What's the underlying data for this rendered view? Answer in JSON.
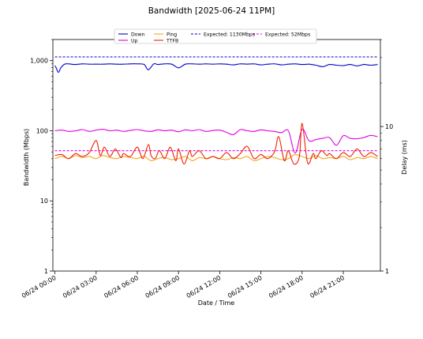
{
  "chart_data": {
    "type": "line",
    "title": "Bandwidth [2025-06-24 11PM]",
    "xlabel": "Date / Time",
    "ylabel": "Bandwidth (Mbps)",
    "y2label": "Delay (ms)",
    "x_ticks": [
      {
        "label": "06/24 00:00",
        "hour": 0
      },
      {
        "label": "06/24 03:00",
        "hour": 3
      },
      {
        "label": "06/24 06:00",
        "hour": 6
      },
      {
        "label": "06/24 09:00",
        "hour": 9
      },
      {
        "label": "06/24 12:00",
        "hour": 12
      },
      {
        "label": "06/24 15:00",
        "hour": 15
      },
      {
        "label": "06/24 18:00",
        "hour": 18
      },
      {
        "label": "06/24 21:00",
        "hour": 21
      }
    ],
    "xlim_hours": [
      -0.15,
      23.7
    ],
    "ylim": [
      1,
      2000
    ],
    "yscale": "log",
    "y_ticks": [
      {
        "label": "1",
        "v": 1
      },
      {
        "label": "10",
        "v": 10
      },
      {
        "label": "100",
        "v": 100
      },
      {
        "label": "1,000",
        "v": 1000
      }
    ],
    "y2lim": [
      1,
      40
    ],
    "y2scale": "log",
    "y2_ticks": [
      {
        "label": "1",
        "v": 1
      },
      {
        "label": "10",
        "v": 10
      }
    ],
    "legend_position": "top-center",
    "series": [
      {
        "name": "Down",
        "axis": "left",
        "color": "#0000cc",
        "style": "solid",
        "x": [
          0,
          0.1,
          0.25,
          0.45,
          0.7,
          1,
          1.5,
          2,
          2.5,
          3,
          3.5,
          4,
          4.5,
          5,
          5.5,
          6,
          6.5,
          6.8,
          7.2,
          7.5,
          8,
          8.5,
          9,
          9.5,
          10,
          10.5,
          11,
          11.5,
          12,
          12.5,
          13,
          13.5,
          14,
          14.5,
          15,
          15.5,
          16,
          16.5,
          17,
          17.5,
          18,
          18.5,
          19,
          19.5,
          20,
          20.5,
          21,
          21.5,
          22,
          22.5,
          23,
          23.5
        ],
        "y": [
          850,
          780,
          680,
          800,
          890,
          900,
          880,
          900,
          890,
          890,
          890,
          900,
          890,
          890,
          900,
          900,
          880,
          740,
          900,
          880,
          900,
          890,
          790,
          890,
          900,
          890,
          900,
          890,
          900,
          890,
          870,
          900,
          890,
          900,
          870,
          890,
          900,
          870,
          890,
          900,
          880,
          890,
          860,
          820,
          880,
          860,
          850,
          880,
          840,
          880,
          860,
          880
        ]
      },
      {
        "name": "Up",
        "axis": "left",
        "color": "#e000e0",
        "style": "solid",
        "x": [
          0,
          0.5,
          1,
          1.5,
          2,
          2.5,
          3,
          3.5,
          4,
          4.5,
          5,
          5.5,
          6,
          6.5,
          7,
          7.5,
          8,
          8.5,
          9,
          9.5,
          10,
          10.5,
          11,
          11.5,
          12,
          12.5,
          13,
          13.5,
          14,
          14.5,
          15,
          15.5,
          16,
          16.5,
          17,
          17.5,
          18,
          18.5,
          19,
          19.5,
          20,
          20.5,
          21,
          21.5,
          22,
          22.5,
          23,
          23.5
        ],
        "y": [
          100,
          102,
          98,
          100,
          104,
          98,
          102,
          105,
          100,
          102,
          98,
          101,
          104,
          100,
          98,
          103,
          100,
          102,
          97,
          103,
          100,
          104,
          98,
          101,
          102,
          95,
          88,
          104,
          100,
          98,
          103,
          100,
          98,
          94,
          100,
          48,
          105,
          72,
          75,
          78,
          80,
          62,
          85,
          78,
          77,
          80,
          86,
          82
        ]
      },
      {
        "name": "Expected: 1130Mbps",
        "axis": "left",
        "color": "#0000cc",
        "style": "dashed",
        "x": [
          0,
          23.5
        ],
        "y": [
          1130,
          1130
        ]
      },
      {
        "name": "Expected: 52Mbps",
        "axis": "left",
        "color": "#e000e0",
        "style": "dashed",
        "x": [
          0,
          23.5
        ],
        "y": [
          52,
          52
        ]
      },
      {
        "name": "Ping",
        "axis": "right",
        "color": "#f5a623",
        "style": "solid",
        "x": [
          0,
          0.5,
          1,
          1.5,
          2,
          2.5,
          3,
          3.5,
          4,
          4.5,
          5,
          5.5,
          6,
          6.5,
          7,
          7.5,
          8,
          8.5,
          9,
          9.5,
          10,
          10.5,
          11,
          11.5,
          12,
          12.5,
          13,
          13.5,
          14,
          14.5,
          15,
          15.5,
          16,
          16.5,
          17,
          17.5,
          18,
          18.5,
          19,
          19.5,
          20,
          20.5,
          21,
          21.5,
          22,
          22.5,
          23,
          23.5
        ],
        "y": [
          6.0,
          6.2,
          6.0,
          6.3,
          6.1,
          6.2,
          6.0,
          6.3,
          6.1,
          6.0,
          6.2,
          6.1,
          6.0,
          6.2,
          5.8,
          6.0,
          6.1,
          5.9,
          6.0,
          6.2,
          5.8,
          6.1,
          6.0,
          6.2,
          6.0,
          5.9,
          6.1,
          6.0,
          6.2,
          5.8,
          6.0,
          6.2,
          6.1,
          5.9,
          6.0,
          6.4,
          6.2,
          6.0,
          6.3,
          6.0,
          6.1,
          6.0,
          6.2,
          5.9,
          6.1,
          6.0,
          6.2,
          6.0
        ]
      },
      {
        "name": "TTFB",
        "axis": "right",
        "color": "#ee2200",
        "style": "solid",
        "x": [
          0,
          0.5,
          1,
          1.5,
          2,
          2.5,
          3,
          3.3,
          3.6,
          4,
          4.4,
          4.8,
          5,
          5.5,
          6,
          6.4,
          6.8,
          7,
          7.3,
          7.6,
          8,
          8.4,
          8.8,
          9,
          9.4,
          9.8,
          10,
          10.5,
          11,
          11.5,
          12,
          12.5,
          13,
          13.5,
          14,
          14.5,
          15,
          15.5,
          16,
          16.3,
          16.7,
          17,
          17.4,
          17.8,
          18,
          18.4,
          18.8,
          19,
          19.4,
          19.8,
          20,
          20.5,
          21,
          21.5,
          22,
          22.5,
          23,
          23.5
        ],
        "y": [
          6.3,
          6.4,
          6.0,
          6.5,
          6.2,
          6.6,
          8.0,
          6.3,
          7.2,
          6.2,
          7.0,
          6.1,
          6.5,
          6.2,
          7.2,
          6.0,
          7.5,
          6.3,
          6.0,
          6.8,
          6.0,
          7.2,
          5.8,
          7.0,
          5.5,
          6.8,
          6.2,
          6.8,
          6.0,
          6.2,
          6.0,
          6.6,
          6.0,
          6.5,
          7.3,
          6.0,
          6.4,
          6.0,
          6.7,
          8.5,
          5.8,
          6.8,
          5.5,
          6.2,
          10.5,
          5.6,
          6.5,
          6.0,
          6.8,
          6.3,
          6.5,
          6.0,
          6.6,
          6.2,
          7.0,
          6.2,
          6.6,
          6.2
        ]
      }
    ]
  }
}
